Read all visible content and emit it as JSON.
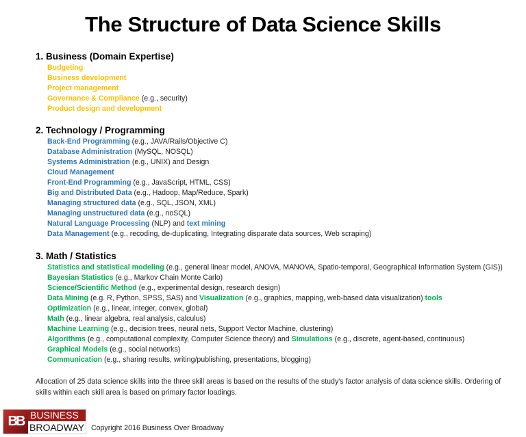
{
  "title": "The Structure of Data Science Skills",
  "colors": {
    "business": "#ffc000",
    "technology": "#2e75b6",
    "math": "#00b050"
  },
  "sections": [
    {
      "heading": "1. Business (Domain Expertise)",
      "color_key": "business",
      "items": [
        [
          {
            "t": "Budgeting",
            "a": true
          }
        ],
        [
          {
            "t": "Business development",
            "a": true
          }
        ],
        [
          {
            "t": "Project management",
            "a": true
          }
        ],
        [
          {
            "t": "Governance & Compliance",
            "a": true
          },
          {
            "t": " (e.g., security)",
            "a": false
          }
        ],
        [
          {
            "t": "Product design and development",
            "a": true
          }
        ]
      ]
    },
    {
      "heading": "2. Technology / Programming",
      "color_key": "technology",
      "items": [
        [
          {
            "t": "Back-End Programming",
            "a": true
          },
          {
            "t": " (e.g., JAVA/Rails/Objective C)",
            "a": false
          }
        ],
        [
          {
            "t": "Database Administration",
            "a": true
          },
          {
            "t": " (MySQL, NOSQL)",
            "a": false
          }
        ],
        [
          {
            "t": "Systems Administration",
            "a": true
          },
          {
            "t": " (e.g., UNIX) and Design",
            "a": false
          }
        ],
        [
          {
            "t": "Cloud Management",
            "a": true
          }
        ],
        [
          {
            "t": "Front-End Programming",
            "a": true
          },
          {
            "t": " (e.g., JavaScript, HTML, CSS)",
            "a": false
          }
        ],
        [
          {
            "t": "Big and Distributed Data",
            "a": true
          },
          {
            "t": " (e.g., Hadoop, Map/Reduce, Spark)",
            "a": false
          }
        ],
        [
          {
            "t": "Managing structured data",
            "a": true
          },
          {
            "t": " (e.g., SQL, JSON, XML)",
            "a": false
          }
        ],
        [
          {
            "t": "Managing unstructured data",
            "a": true
          },
          {
            "t": " (e.g., noSQL)",
            "a": false
          }
        ],
        [
          {
            "t": "Natural Language Processing",
            "a": true
          },
          {
            "t": " (NLP) and ",
            "a": false
          },
          {
            "t": "text mining",
            "a": true
          }
        ],
        [
          {
            "t": "Data Management",
            "a": true
          },
          {
            "t": " (e.g., recoding, de-duplicating, Integrating disparate data sources, Web scraping)",
            "a": false
          }
        ]
      ]
    },
    {
      "heading": "3. Math / Statistics",
      "color_key": "math",
      "items": [
        [
          {
            "t": "Statistics and statistical modeling",
            "a": true
          },
          {
            "t": " (e.g., general linear model, ANOVA, MANOVA, Spatio-temporal, Geographical Information System (GIS))",
            "a": false
          }
        ],
        [
          {
            "t": "Bayesian Statistics",
            "a": true
          },
          {
            "t": " (e.g., Markov Chain Monte Carlo)",
            "a": false
          }
        ],
        [
          {
            "t": "Science/Scientific Method",
            "a": true
          },
          {
            "t": " (e.g., experimental design, research design)",
            "a": false
          }
        ],
        [
          {
            "t": "Data Mining",
            "a": true
          },
          {
            "t": " (e.g. R, Python, SPSS, SAS) and ",
            "a": false
          },
          {
            "t": "Visualization",
            "a": true
          },
          {
            "t": " (e.g., graphics, mapping, web-based data visualization) ",
            "a": false
          },
          {
            "t": "tools",
            "a": true
          }
        ],
        [
          {
            "t": "Optimization",
            "a": true
          },
          {
            "t": " (e.g., linear, integer, convex, global)",
            "a": false
          }
        ],
        [
          {
            "t": "Math",
            "a": true
          },
          {
            "t": " (e.g., linear algebra, real analysis, calculus)",
            "a": false
          }
        ],
        [
          {
            "t": "Machine Learning",
            "a": true
          },
          {
            "t": " (e.g., decision trees, neural nets, Support Vector Machine, clustering)",
            "a": false
          }
        ],
        [
          {
            "t": "Algorithms",
            "a": true
          },
          {
            "t": " (e.g., computational complexity, Computer Science theory) and ",
            "a": false
          },
          {
            "t": "Simulations",
            "a": true
          },
          {
            "t": " (e.g., discrete, agent-based, continuous)",
            "a": false
          }
        ],
        [
          {
            "t": "Graphical Models",
            "a": true
          },
          {
            "t": " (e.g., social networks)",
            "a": false
          }
        ],
        [
          {
            "t": "Communication",
            "a": true
          },
          {
            "t": " (e.g., sharing results, writing/publishing, presentations, blogging)",
            "a": false
          }
        ]
      ]
    }
  ],
  "footnote": "Allocation of 25 data science skills into the three skill areas is based on the results of the study's factor analysis of data science skills. Ordering of skills within each skill area is based on primary factor loadings.",
  "logo": {
    "mark": "BB",
    "top": "BUSINESS",
    "bottom": "BROADWAY"
  },
  "copyright": "Copyright 2016 Business Over Broadway"
}
